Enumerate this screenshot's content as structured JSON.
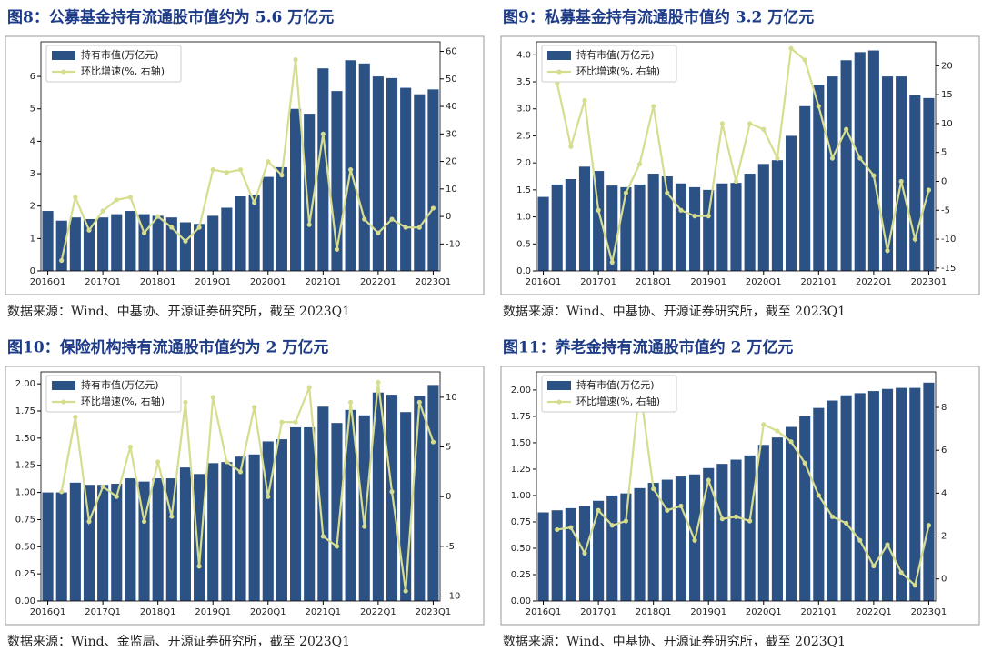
{
  "chart_data": [
    {
      "type": "bar_line",
      "title": "图8：公募基金持有流通股市值约为 5.6 万亿元",
      "source": "数据来源：Wind、中基协、开源证券研究所，截至 2023Q1",
      "categories": [
        "2016Q1",
        null,
        null,
        null,
        "2017Q1",
        null,
        null,
        null,
        "2018Q1",
        null,
        null,
        null,
        "2019Q1",
        null,
        null,
        null,
        "2020Q1",
        null,
        null,
        null,
        "2021Q1",
        null,
        null,
        null,
        "2022Q1",
        null,
        null,
        null,
        "2023Q1"
      ],
      "series": [
        {
          "name": "持有市值(万亿元)",
          "color": "#2b5185",
          "kind": "bar",
          "values": [
            1.85,
            1.55,
            1.65,
            1.6,
            1.65,
            1.75,
            1.85,
            1.75,
            1.7,
            1.65,
            1.5,
            1.45,
            1.7,
            1.95,
            2.3,
            2.35,
            2.9,
            3.2,
            5.0,
            4.85,
            6.25,
            5.55,
            6.5,
            6.4,
            6.0,
            5.95,
            5.65,
            5.45,
            5.6
          ]
        },
        {
          "name": "环比增速(%, 右轴)",
          "color": "#d6dd8f",
          "kind": "line",
          "axis": "y2",
          "values": [
            null,
            -16,
            7,
            -5,
            2,
            6,
            7,
            -6,
            0,
            -4,
            -9,
            -4,
            17,
            16,
            17,
            5,
            20,
            15,
            57,
            -3,
            30,
            -12,
            17,
            -1,
            -6,
            -1,
            -4,
            -4,
            3
          ]
        }
      ],
      "ylim": [
        0,
        6.9
      ],
      "yticks": [
        0,
        1,
        2,
        3,
        4,
        5,
        6
      ],
      "y2lim": [
        -19.8,
        61.5
      ],
      "y2ticks": [
        -10,
        0,
        10,
        20,
        30,
        40,
        50,
        60
      ],
      "legend": "upper left"
    },
    {
      "type": "bar_line",
      "title": "图9：私募基金持有流通股市值约 3.2 万亿元",
      "source": "数据来源：Wind、中基协、开源证券研究所，截至 2023Q1",
      "categories": [
        "2016Q1",
        null,
        null,
        null,
        "2017Q1",
        null,
        null,
        null,
        "2018Q1",
        null,
        null,
        null,
        "2019Q1",
        null,
        null,
        null,
        "2020Q1",
        null,
        null,
        null,
        "2021Q1",
        null,
        null,
        null,
        "2022Q1",
        null,
        null,
        null,
        "2023Q1"
      ],
      "series": [
        {
          "name": "持有市值(万亿元)",
          "color": "#2b5185",
          "kind": "bar",
          "values": [
            1.37,
            1.6,
            1.7,
            1.93,
            1.85,
            1.58,
            1.55,
            1.6,
            1.8,
            1.75,
            1.62,
            1.55,
            1.5,
            1.62,
            1.63,
            1.8,
            1.98,
            2.05,
            2.5,
            3.05,
            3.45,
            3.6,
            3.9,
            4.05,
            4.08,
            3.6,
            3.6,
            3.25,
            3.2
          ]
        },
        {
          "name": "环比增速(%, 右轴)",
          "color": "#d6dd8f",
          "kind": "line",
          "axis": "y2",
          "values": [
            null,
            17,
            6,
            14,
            -5,
            -14,
            -2,
            3,
            13,
            -2,
            -5,
            -6,
            -6,
            10,
            0,
            10,
            9,
            4,
            23,
            21,
            13,
            4,
            9,
            4,
            1,
            -12,
            0,
            -10,
            -1.5
          ]
        }
      ],
      "ylim": [
        0,
        4.14
      ],
      "yticks": [
        {
          "value": 0,
          "label": "0.0"
        },
        {
          "value": 0.5,
          "label": "0.5"
        },
        {
          "value": 1,
          "label": "1.0"
        },
        {
          "value": 1.5,
          "label": "1.5"
        },
        {
          "value": 2,
          "label": "2.0"
        },
        {
          "value": 2.5,
          "label": "2.5"
        },
        {
          "value": 3,
          "label": "3.0"
        },
        {
          "value": 3.5,
          "label": "3.5"
        },
        {
          "value": 4,
          "label": "4.0"
        }
      ],
      "y2lim": [
        -15.5,
        23.2
      ],
      "y2ticks": [
        -15,
        -10,
        -5,
        0,
        5,
        10,
        15,
        20
      ],
      "legend": "upper left"
    },
    {
      "type": "bar_line",
      "title": "图10：保险机构持有流通股市值约为 2 万亿元",
      "source": "数据来源：Wind、金监局、开源证券研究所，截至 2023Q1",
      "categories": [
        "2016Q1",
        null,
        null,
        null,
        "2017Q1",
        null,
        null,
        null,
        "2018Q1",
        null,
        null,
        null,
        "2019Q1",
        null,
        null,
        null,
        "2020Q1",
        null,
        null,
        null,
        "2021Q1",
        null,
        null,
        null,
        "2022Q1",
        null,
        null,
        null,
        "2023Q1"
      ],
      "series": [
        {
          "name": "持有市值(万亿元)",
          "color": "#2b5185",
          "kind": "bar",
          "values": [
            1.0,
            1.0,
            1.09,
            1.07,
            1.07,
            1.08,
            1.13,
            1.1,
            1.13,
            1.13,
            1.23,
            1.17,
            1.27,
            1.28,
            1.33,
            1.35,
            1.47,
            1.49,
            1.6,
            1.6,
            1.79,
            1.64,
            1.76,
            1.71,
            1.92,
            1.9,
            1.74,
            1.89,
            1.99
          ]
        },
        {
          "name": "环比增速(%, 右轴)",
          "color": "#d6dd8f",
          "kind": "line",
          "axis": "y2",
          "values": [
            null,
            0.5,
            8,
            -2.5,
            1,
            0,
            5,
            -2.5,
            3.5,
            -2,
            9.5,
            -7,
            10,
            3.5,
            2.5,
            9,
            0,
            7.5,
            7.5,
            11,
            -4,
            -5,
            9.5,
            -3,
            11.5,
            0.5,
            -9.5,
            9.5,
            5.5
          ]
        }
      ],
      "ylim": [
        0,
        2.06
      ],
      "yticks": [
        {
          "value": 0,
          "label": "0.00"
        },
        {
          "value": 0.25,
          "label": "0.25"
        },
        {
          "value": 0.5,
          "label": "0.50"
        },
        {
          "value": 0.75,
          "label": "0.75"
        },
        {
          "value": 1,
          "label": "1.00"
        },
        {
          "value": 1.25,
          "label": "1.25"
        },
        {
          "value": 1.5,
          "label": "1.50"
        },
        {
          "value": 1.75,
          "label": "1.75"
        },
        {
          "value": 2,
          "label": "2.00"
        }
      ],
      "y2lim": [
        -10.5,
        12
      ],
      "y2ticks": [
        -10,
        -5,
        0,
        5,
        10
      ],
      "legend": "upper left"
    },
    {
      "type": "bar_line",
      "title": "图11：养老金持有流通股市值约 2 万亿元",
      "source": "数据来源：Wind、中基协、开源证券研究所，截至 2023Q1",
      "categories": [
        "2016Q1",
        null,
        null,
        null,
        "2017Q1",
        null,
        null,
        null,
        "2018Q1",
        null,
        null,
        null,
        "2019Q1",
        null,
        null,
        null,
        "2020Q1",
        null,
        null,
        null,
        "2021Q1",
        null,
        null,
        null,
        "2022Q1",
        null,
        null,
        null,
        "2023Q1"
      ],
      "series": [
        {
          "name": "持有市值(万亿元)",
          "color": "#2b5185",
          "kind": "bar",
          "values": [
            0.84,
            0.86,
            0.88,
            0.9,
            0.95,
            1.0,
            1.02,
            1.07,
            1.12,
            1.15,
            1.18,
            1.2,
            1.26,
            1.3,
            1.34,
            1.38,
            1.48,
            1.55,
            1.65,
            1.75,
            1.83,
            1.9,
            1.95,
            1.97,
            1.99,
            2.01,
            2.02,
            2.02,
            2.07
          ]
        },
        {
          "name": "环比增速(%, 右轴)",
          "color": "#d6dd8f",
          "kind": "line",
          "axis": "y2",
          "values": [
            null,
            2.3,
            2.4,
            1.2,
            3.2,
            2.5,
            2.7,
            9,
            4.2,
            3.2,
            3.4,
            1.8,
            4.6,
            2.8,
            2.9,
            2.7,
            7.2,
            6.9,
            6.4,
            5.4,
            3.9,
            2.9,
            2.6,
            1.8,
            0.6,
            1.6,
            0.3,
            -0.3,
            2.5
          ]
        }
      ],
      "ylim": [
        0,
        2.12
      ],
      "yticks": [
        {
          "value": 0,
          "label": "0.00"
        },
        {
          "value": 0.25,
          "label": "0.25"
        },
        {
          "value": 0.5,
          "label": "0.50"
        },
        {
          "value": 0.75,
          "label": "0.75"
        },
        {
          "value": 1,
          "label": "1.00"
        },
        {
          "value": 1.25,
          "label": "1.25"
        },
        {
          "value": 1.5,
          "label": "1.50"
        },
        {
          "value": 1.75,
          "label": "1.75"
        },
        {
          "value": 2,
          "label": "2.00"
        }
      ],
      "y2lim": [
        -1.03,
        9.4
      ],
      "y2ticks": [
        0,
        2,
        4,
        6,
        8
      ],
      "legend": "upper left"
    }
  ]
}
